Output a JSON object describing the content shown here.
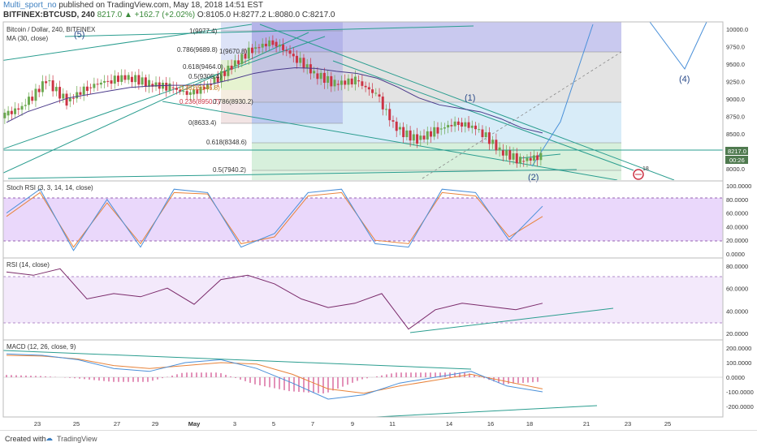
{
  "header": {
    "author": "Multi_sport_no",
    "published": "published on TradingView.com, May 18, 2018 14:51 EST",
    "symbol": "BITFINEX:BTCUSD, 240",
    "change": "8217.0 ▲ +162.7 (+2.02%)",
    "ohlc": "O:8105.0 H:8277.2 L:8080.0 C:8217.0"
  },
  "main_pane": {
    "legend": "Bitcoin / Dollar, 240, BITFINEX",
    "ma_label": "MA (30, close)",
    "price_axis": [
      "10000.0",
      "9750.0",
      "9500.0",
      "9250.0",
      "9000.0",
      "8750.0",
      "8500.0",
      "8250.0",
      "8000.0"
    ],
    "last_price": "8217.0",
    "countdown": "00:26",
    "fib_labels": [
      "1(9977.4)",
      "0.786(9689.8)",
      "0.618(9464.0)",
      "0.5(9305.4)",
      "0.382(9146.8)",
      "0.236(8950.7)",
      "0(8633.4)",
      "1(9670.8)",
      "0.786(8930.2)",
      "0.618(8348.6)",
      "0.5(7940.2)"
    ],
    "wave_labels": [
      "(5)",
      "(1)",
      "(2)",
      "(4)"
    ],
    "event_badge": "18"
  },
  "stoch_pane": {
    "label": "Stoch RSI (3, 3, 14, 14, close)",
    "axis": [
      "100.0000",
      "80.0000",
      "60.0000",
      "40.0000",
      "20.0000",
      "0.0000"
    ]
  },
  "rsi_pane": {
    "label": "RSI (14, close)",
    "axis": [
      "80.0000",
      "60.0000",
      "40.0000",
      "20.0000"
    ]
  },
  "macd_pane": {
    "label": "MACD (12, 26, close, 9)",
    "axis": [
      "200.0000",
      "100.0000",
      "0.0000",
      "-100.0000",
      "-200.0000"
    ]
  },
  "time_axis": [
    "23",
    "25",
    "27",
    "29",
    "May",
    "3",
    "5",
    "7",
    "9",
    "11",
    "14",
    "16",
    "18",
    "21",
    "23",
    "25"
  ],
  "footer": {
    "created": "Created with",
    "brand": "TradingView"
  },
  "colors": {
    "up": "#6aa84f",
    "down": "#cc3344",
    "ma": "#4a3a8a",
    "trend": "#2a9d8f",
    "projection": "#4a90d9",
    "stoch_k": "#4a90d9",
    "stoch_d": "#e8833a",
    "rsi": "#7a2a6a",
    "band": "#cfa6f5"
  },
  "chart_data": [
    {
      "type": "candlestick",
      "title": "Bitcoin / Dollar, 240, BITFINEX",
      "x": [
        "Apr 22",
        "Apr 23",
        "Apr 24",
        "Apr 25",
        "Apr 26",
        "Apr 27",
        "Apr 28",
        "Apr 29",
        "Apr 30",
        "May 1",
        "May 2",
        "May 3",
        "May 4",
        "May 5",
        "May 6",
        "May 7",
        "May 8",
        "May 9",
        "May 10",
        "May 11",
        "May 12",
        "May 13",
        "May 14",
        "May 15",
        "May 16",
        "May 17",
        "May 18"
      ],
      "close": [
        8800,
        8950,
        9300,
        9000,
        9200,
        9300,
        9350,
        9250,
        9200,
        9100,
        9250,
        9500,
        9750,
        9850,
        9650,
        9400,
        9250,
        9300,
        9100,
        8600,
        8450,
        8600,
        8700,
        8600,
        8300,
        8150,
        8217
      ],
      "ma30": [
        8700,
        8850,
        8950,
        9050,
        9100,
        9150,
        9200,
        9220,
        9230,
        9230,
        9250,
        9320,
        9400,
        9450,
        9480,
        9470,
        9430,
        9400,
        9330,
        9200,
        9050,
        8950,
        8900,
        8850,
        8750,
        8620,
        8550
      ],
      "ylim": [
        7900,
        10100
      ]
    },
    {
      "type": "line",
      "title": "Stoch RSI (3, 3, 14, 14, close)",
      "series": [
        {
          "name": "K",
          "values": [
            60,
            95,
            5,
            80,
            10,
            95,
            90,
            10,
            30,
            90,
            95,
            15,
            10,
            95,
            90,
            20,
            70
          ]
        },
        {
          "name": "D",
          "values": [
            55,
            90,
            10,
            75,
            15,
            90,
            88,
            15,
            25,
            85,
            90,
            20,
            15,
            90,
            85,
            25,
            55
          ]
        }
      ],
      "ylim": [
        0,
        100
      ],
      "bands": [
        20,
        80
      ]
    },
    {
      "type": "line",
      "title": "RSI (14, close)",
      "values": [
        75,
        72,
        78,
        50,
        55,
        52,
        60,
        45,
        68,
        72,
        64,
        50,
        42,
        46,
        55,
        22,
        40,
        46,
        43,
        40,
        46
      ],
      "ylim": [
        15,
        85
      ],
      "bands": [
        30,
        70
      ]
    },
    {
      "type": "bar",
      "title": "MACD (12, 26, close, 9)",
      "macd": [
        160,
        150,
        120,
        60,
        40,
        100,
        120,
        60,
        -40,
        -150,
        -120,
        -40,
        0,
        40,
        -60,
        -100
      ],
      "signal": [
        150,
        145,
        125,
        80,
        60,
        80,
        100,
        90,
        20,
        -80,
        -110,
        -60,
        -20,
        20,
        -30,
        -80
      ],
      "ylim": [
        -250,
        250
      ]
    }
  ]
}
